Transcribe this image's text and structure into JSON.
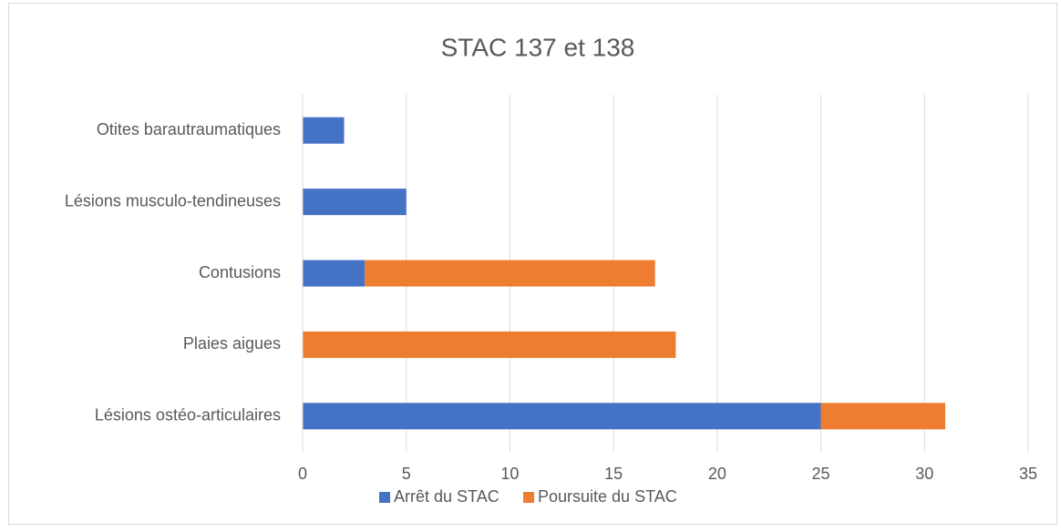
{
  "chart_data": {
    "type": "bar",
    "orientation": "horizontal",
    "stacked": true,
    "title": "STAC 137 et 138",
    "categories": [
      "Otites barautraumatiques",
      "Lésions musculo-tendineuses",
      "Contusions",
      "Plaies aigues",
      "Lésions ostéo-articulaires"
    ],
    "series": [
      {
        "name": "Arrêt du STAC",
        "color": "#4472c4",
        "values": [
          2,
          5,
          3,
          0,
          25
        ]
      },
      {
        "name": "Poursuite du STAC",
        "color": "#ed7d31",
        "values": [
          0,
          0,
          14,
          18,
          6
        ]
      }
    ],
    "xlim": [
      0,
      35
    ],
    "xticks": [
      0,
      5,
      10,
      15,
      20,
      25,
      30,
      35
    ],
    "grid": true,
    "legend": "bottom"
  }
}
